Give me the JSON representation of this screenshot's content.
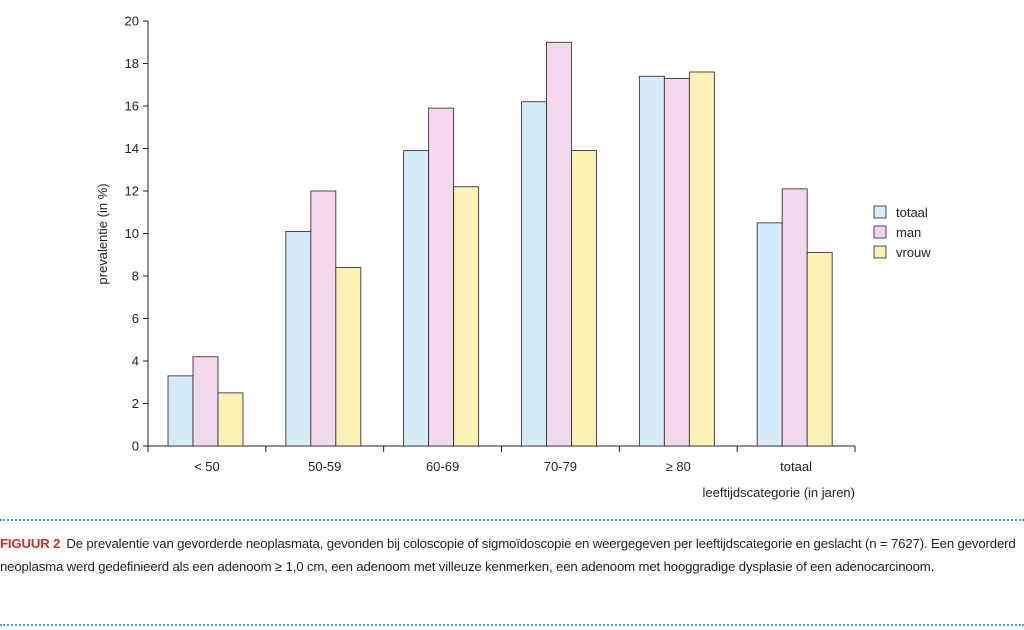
{
  "colors": {
    "totaal": "#d6ebf8",
    "man": "#f2d8ec",
    "vrouw": "#fcf2b6",
    "stroke": "#231f20",
    "accent_caption": "#c9302c",
    "rule": "#3fa9d6"
  },
  "chart_data": {
    "type": "bar",
    "title": "",
    "xlabel": "leeftijdscategorie (in jaren)",
    "ylabel": "prevalentie (in %)",
    "ylim": [
      0,
      20
    ],
    "yticks": [
      0,
      2,
      4,
      6,
      8,
      10,
      12,
      14,
      16,
      18,
      20
    ],
    "categories": [
      "< 50",
      "50-59",
      "60-69",
      "70-79",
      "≥ 80",
      "totaal"
    ],
    "series": [
      {
        "name": "totaal",
        "values": [
          3.3,
          10.1,
          13.9,
          16.2,
          17.4,
          10.5
        ]
      },
      {
        "name": "man",
        "values": [
          4.2,
          12.0,
          15.9,
          19.0,
          17.3,
          12.1
        ]
      },
      {
        "name": "vrouw",
        "values": [
          2.5,
          8.4,
          12.2,
          13.9,
          17.6,
          9.1
        ]
      }
    ],
    "legend": [
      "totaal",
      "man",
      "vrouw"
    ],
    "legend_position": "right",
    "grid": false
  },
  "caption": {
    "label": "FIGUUR 2",
    "text": "De prevalentie van gevorderde neoplasmata, gevonden bij coloscopie of sigmoïdoscopie en weergegeven per leeftijdscategorie en geslacht (n = 7627). Een gevorderd neoplasma werd gedefinieerd als een adenoom ≥ 1,0 cm, een adenoom met villeuze kenmerken, een adenoom met hooggradige dysplasie of een adenocarcinoom."
  }
}
